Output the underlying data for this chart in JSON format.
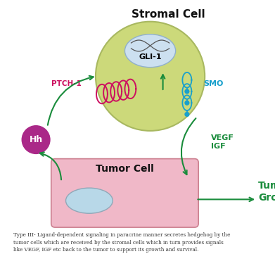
{
  "title": "Stromal Cell",
  "tumor_cell_label": "Tumor Cell",
  "gli1_label": "GLI-1",
  "smo_label": "SMO",
  "ptch1_label": "PTCH-1",
  "hh_label": "Hh",
  "vegf_igf_label": "VEGF\nIGF",
  "tumor_growth_label": "Tumor\nGrowth",
  "caption": "Type III- Ligand-dependent signaling in paracrine manner secretes hedgehog by the\ntumor cells which are received by the stromal cells which in turn provides signals\nlike VEGF, IGF etc back to the tumor to support its growth and survival.",
  "bg_color": "#ffffff",
  "stromal_cell_color": "#ccd97a",
  "stromal_cell_border": "#a8b860",
  "nucleus_color": "#cce0f0",
  "nucleus_border": "#90b0cc",
  "tumor_cell_color": "#f0b8c8",
  "tumor_cell_border": "#cc8090",
  "tumor_nucleus_color": "#b8d8e8",
  "tumor_nucleus_border": "#90a8b8",
  "hh_circle_color": "#aa2888",
  "hh_text_color": "#ffffff",
  "ptch1_color": "#cc1060",
  "smo_color": "#18a0cc",
  "gli1_color": "#000000",
  "stromal_title_color": "#111111",
  "tumor_title_color": "#111111",
  "arrow_color": "#1a8c3c",
  "vegf_igf_color": "#1a8c3c",
  "tumor_growth_color": "#1a8c3c",
  "dna_color": "#555555",
  "caption_color": "#333333"
}
